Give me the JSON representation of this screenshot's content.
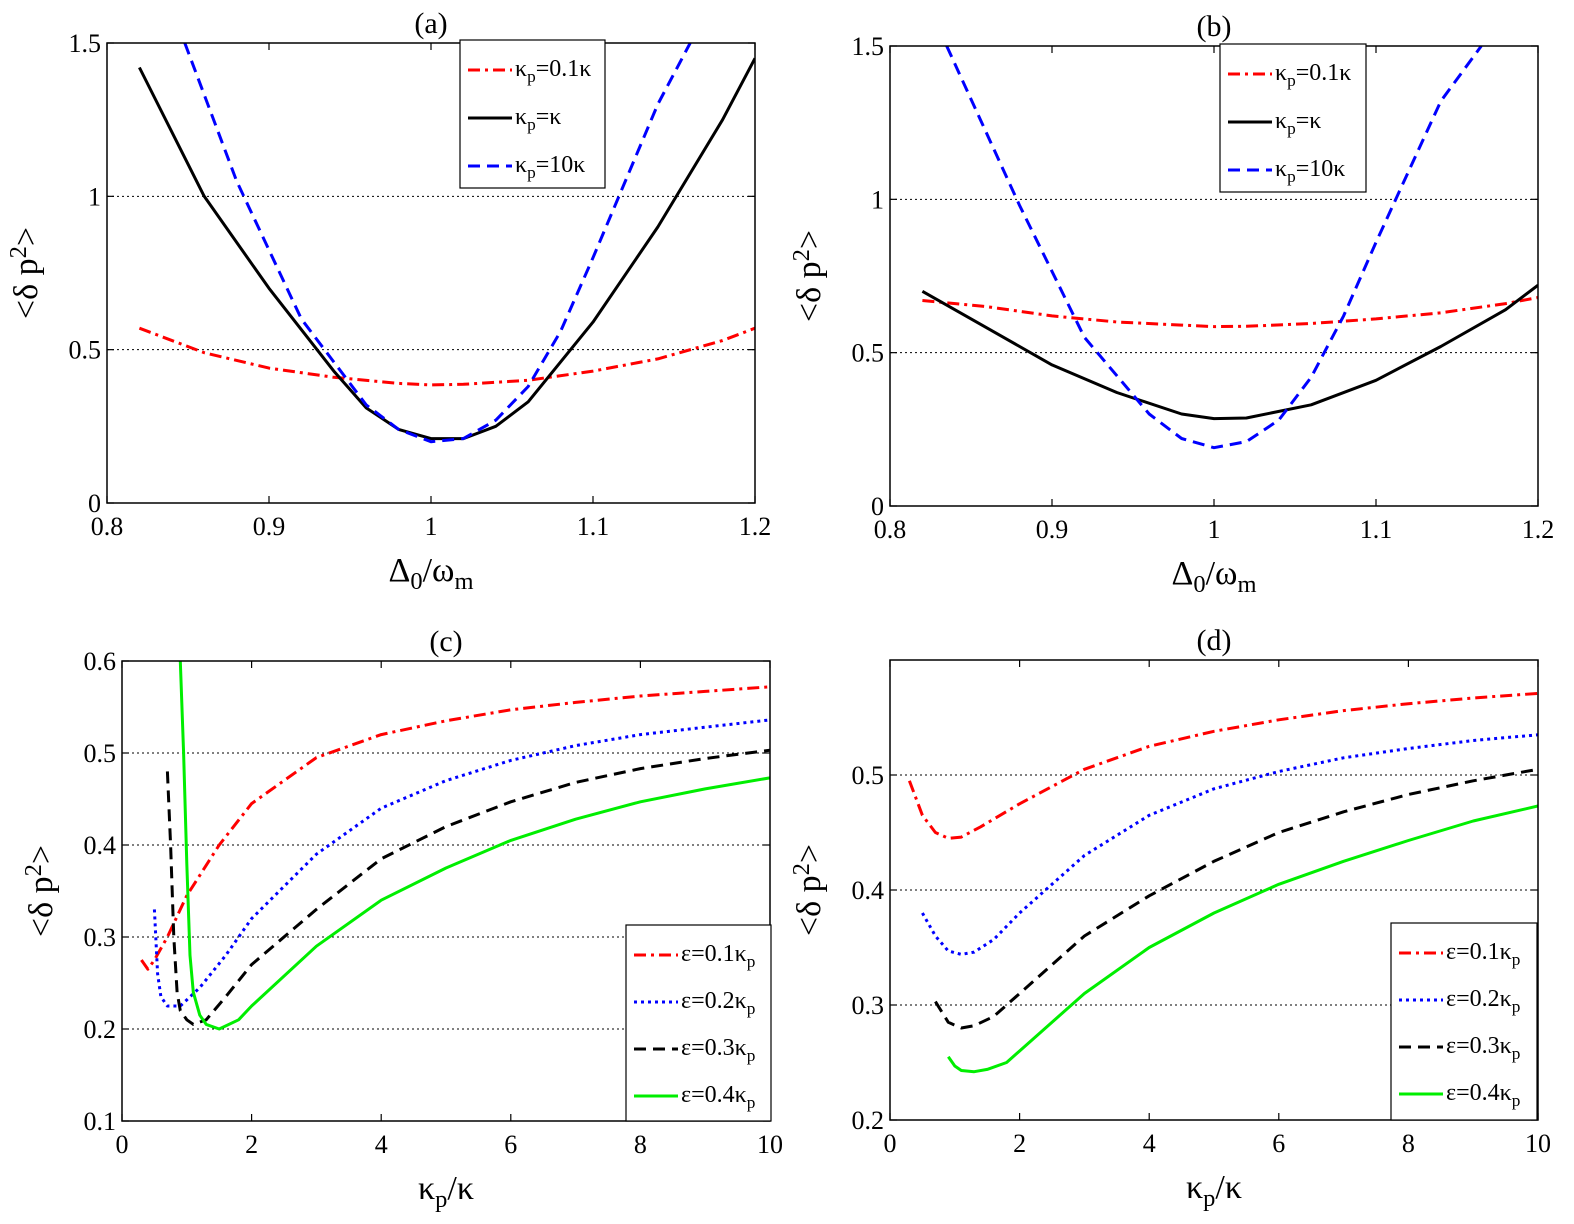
{
  "chart_data": [
    {
      "type": "line",
      "panel": "(a)",
      "title": "(a)",
      "xlabel": {
        "main": "Δ",
        "sub": "0",
        "tail": "/ω",
        "tailsub": "m"
      },
      "ylabel": {
        "main": "<δ p",
        "sup": "2",
        "tail": ">"
      },
      "xlim": [
        0.8,
        1.2
      ],
      "ylim": [
        0,
        1.5
      ],
      "xticks": [
        0.8,
        0.9,
        1.0,
        1.1,
        1.2
      ],
      "xticklabels": [
        "0.8",
        "0.9",
        "1",
        "1.1",
        "1.2"
      ],
      "yticks": [
        0,
        0.5,
        1.0,
        1.5
      ],
      "yticklabels": [
        "0",
        "0.5",
        "1",
        "1.5"
      ],
      "grid_y": [
        0.5,
        1.0
      ],
      "legend_position": "top-right",
      "series": [
        {
          "name": "κp=0.1κ",
          "label": {
            "main": "κ",
            "sub": "p",
            "tail": "=0.1κ"
          },
          "color": "#ff0000",
          "style": "dashdot",
          "x": [
            0.82,
            0.86,
            0.9,
            0.94,
            0.98,
            1.0,
            1.02,
            1.06,
            1.1,
            1.14,
            1.18,
            1.2
          ],
          "y": [
            0.57,
            0.49,
            0.44,
            0.41,
            0.39,
            0.385,
            0.387,
            0.4,
            0.43,
            0.47,
            0.53,
            0.57
          ]
        },
        {
          "name": "κp=κ",
          "label": {
            "main": "κ",
            "sub": "p",
            "tail": "=κ"
          },
          "color": "#000000",
          "style": "solid",
          "x": [
            0.82,
            0.86,
            0.9,
            0.94,
            0.96,
            0.98,
            1.0,
            1.02,
            1.04,
            1.06,
            1.1,
            1.14,
            1.18,
            1.2
          ],
          "y": [
            1.42,
            1.0,
            0.7,
            0.43,
            0.31,
            0.24,
            0.21,
            0.21,
            0.25,
            0.33,
            0.59,
            0.9,
            1.25,
            1.45
          ]
        },
        {
          "name": "κp=10κ",
          "label": {
            "main": "κ",
            "sub": "p",
            "tail": "=10κ"
          },
          "color": "#0000ff",
          "style": "dashed",
          "x": [
            0.848,
            0.88,
            0.92,
            0.96,
            0.98,
            1.0,
            1.02,
            1.04,
            1.06,
            1.08,
            1.1,
            1.14,
            1.16
          ],
          "y": [
            1.5,
            1.05,
            0.6,
            0.32,
            0.24,
            0.2,
            0.21,
            0.27,
            0.38,
            0.56,
            0.8,
            1.3,
            1.5
          ]
        }
      ]
    },
    {
      "type": "line",
      "panel": "(b)",
      "title": "(b)",
      "xlabel": {
        "main": "Δ",
        "sub": "0",
        "tail": "/ω",
        "tailsub": "m"
      },
      "ylabel": {
        "main": "<δ p",
        "sup": "2",
        "tail": ">"
      },
      "xlim": [
        0.8,
        1.2
      ],
      "ylim": [
        0,
        1.5
      ],
      "xticks": [
        0.8,
        0.9,
        1.0,
        1.1,
        1.2
      ],
      "xticklabels": [
        "0.8",
        "0.9",
        "1",
        "1.1",
        "1.2"
      ],
      "yticks": [
        0,
        0.5,
        1.0,
        1.5
      ],
      "yticklabels": [
        "0",
        "0.5",
        "1",
        "1.5"
      ],
      "grid_y": [
        0.5,
        1.0
      ],
      "legend_position": "top-right",
      "series": [
        {
          "name": "κp=0.1κ",
          "label": {
            "main": "κ",
            "sub": "p",
            "tail": "=0.1κ"
          },
          "color": "#ff0000",
          "style": "dashdot",
          "x": [
            0.82,
            0.86,
            0.9,
            0.94,
            0.98,
            1.0,
            1.02,
            1.06,
            1.1,
            1.14,
            1.18,
            1.2
          ],
          "y": [
            0.67,
            0.65,
            0.62,
            0.6,
            0.59,
            0.585,
            0.586,
            0.595,
            0.61,
            0.63,
            0.66,
            0.68
          ]
        },
        {
          "name": "κp=κ",
          "label": {
            "main": "κ",
            "sub": "p",
            "tail": "=κ"
          },
          "color": "#000000",
          "style": "solid",
          "x": [
            0.82,
            0.86,
            0.9,
            0.94,
            0.98,
            1.0,
            1.02,
            1.06,
            1.1,
            1.14,
            1.18,
            1.2
          ],
          "y": [
            0.7,
            0.58,
            0.46,
            0.37,
            0.3,
            0.285,
            0.287,
            0.33,
            0.41,
            0.52,
            0.64,
            0.72
          ]
        },
        {
          "name": "κp=10κ",
          "label": {
            "main": "κ",
            "sub": "p",
            "tail": "=10κ"
          },
          "color": "#0000ff",
          "style": "dashed",
          "x": [
            0.835,
            0.88,
            0.92,
            0.96,
            0.98,
            1.0,
            1.02,
            1.04,
            1.06,
            1.08,
            1.1,
            1.14,
            1.165
          ],
          "y": [
            1.5,
            0.98,
            0.55,
            0.3,
            0.22,
            0.19,
            0.21,
            0.28,
            0.42,
            0.62,
            0.86,
            1.32,
            1.5
          ]
        }
      ]
    },
    {
      "type": "line",
      "panel": "(c)",
      "title": "(c)",
      "xlabel": {
        "main": "κ",
        "sub": "p",
        "tail": "/κ"
      },
      "ylabel": {
        "main": "<δ p",
        "sup": "2",
        "tail": ">"
      },
      "xlim": [
        0,
        10
      ],
      "ylim": [
        0.1,
        0.6
      ],
      "xticks": [
        0,
        2,
        4,
        6,
        8,
        10
      ],
      "xticklabels": [
        "0",
        "2",
        "4",
        "6",
        "8",
        "10"
      ],
      "yticks": [
        0.1,
        0.2,
        0.3,
        0.4,
        0.5,
        0.6
      ],
      "yticklabels": [
        "0.1",
        "0.2",
        "0.3",
        "0.4",
        "0.5",
        "0.6"
      ],
      "grid_y": [
        0.2,
        0.3,
        0.4,
        0.5
      ],
      "legend_position": "bottom-right",
      "series": [
        {
          "name": "ε=0.1κp",
          "label": {
            "main": "ε=0.1κ",
            "sub": "p",
            "tail": ""
          },
          "color": "#ff0000",
          "style": "dashdot",
          "x": [
            0.3,
            0.4,
            0.5,
            0.7,
            1.0,
            1.5,
            2.0,
            3.0,
            4.0,
            5.0,
            6.0,
            7.0,
            8.0,
            9.0,
            10.0
          ],
          "y": [
            0.275,
            0.265,
            0.275,
            0.3,
            0.345,
            0.4,
            0.445,
            0.495,
            0.52,
            0.535,
            0.547,
            0.555,
            0.562,
            0.567,
            0.572
          ]
        },
        {
          "name": "ε=0.2κp",
          "label": {
            "main": "ε=0.2κ",
            "sub": "p",
            "tail": ""
          },
          "color": "#0000ff",
          "style": "dotted",
          "x": [
            0.5,
            0.55,
            0.6,
            0.7,
            0.9,
            1.2,
            1.6,
            2.0,
            3.0,
            4.0,
            5.0,
            6.0,
            7.0,
            8.0,
            9.0,
            10.0
          ],
          "y": [
            0.33,
            0.26,
            0.235,
            0.225,
            0.225,
            0.245,
            0.28,
            0.32,
            0.39,
            0.44,
            0.47,
            0.492,
            0.508,
            0.52,
            0.528,
            0.536
          ]
        },
        {
          "name": "ε=0.3κp",
          "label": {
            "main": "ε=0.3κ",
            "sub": "p",
            "tail": ""
          },
          "color": "#000000",
          "style": "dashed",
          "x": [
            0.7,
            0.75,
            0.8,
            0.85,
            0.9,
            1.0,
            1.1,
            1.3,
            1.6,
            2.0,
            3.0,
            4.0,
            5.0,
            6.0,
            7.0,
            8.0,
            9.0,
            10.0
          ],
          "y": [
            0.48,
            0.4,
            0.3,
            0.24,
            0.22,
            0.21,
            0.205,
            0.21,
            0.235,
            0.27,
            0.33,
            0.385,
            0.42,
            0.447,
            0.468,
            0.483,
            0.494,
            0.503
          ]
        },
        {
          "name": "ε=0.4κp",
          "label": {
            "main": "ε=0.4κ",
            "sub": "p",
            "tail": ""
          },
          "color": "#00ee00",
          "style": "solid",
          "x": [
            0.9,
            0.95,
            1.0,
            1.05,
            1.1,
            1.2,
            1.3,
            1.5,
            1.8,
            2.0,
            3.0,
            4.0,
            5.0,
            6.0,
            7.0,
            8.0,
            9.0,
            10.0
          ],
          "y": [
            0.6,
            0.5,
            0.38,
            0.28,
            0.24,
            0.215,
            0.205,
            0.2,
            0.21,
            0.225,
            0.29,
            0.34,
            0.375,
            0.405,
            0.428,
            0.447,
            0.461,
            0.473
          ]
        }
      ]
    },
    {
      "type": "line",
      "panel": "(d)",
      "title": "(d)",
      "xlabel": {
        "main": "κ",
        "sub": "p",
        "tail": "/κ"
      },
      "ylabel": {
        "main": "<δ p",
        "sup": "2",
        "tail": ">"
      },
      "xlim": [
        0,
        10
      ],
      "ylim": [
        0.2,
        0.6
      ],
      "xticks": [
        0,
        2,
        4,
        6,
        8,
        10
      ],
      "xticklabels": [
        "0",
        "2",
        "4",
        "6",
        "8",
        "10"
      ],
      "yticks": [
        0.2,
        0.3,
        0.4,
        0.5
      ],
      "yticklabels": [
        "0.2",
        "0.3",
        "0.4",
        "0.5"
      ],
      "grid_y": [
        0.3,
        0.4,
        0.5
      ],
      "legend_position": "bottom-right",
      "series": [
        {
          "name": "ε=0.1κp",
          "label": {
            "main": "ε=0.1κ",
            "sub": "p",
            "tail": ""
          },
          "color": "#ff0000",
          "style": "dashdot",
          "x": [
            0.3,
            0.5,
            0.7,
            0.9,
            1.1,
            1.4,
            2.0,
            3.0,
            4.0,
            5.0,
            6.0,
            7.0,
            8.0,
            9.0,
            10.0
          ],
          "y": [
            0.495,
            0.465,
            0.45,
            0.445,
            0.446,
            0.455,
            0.475,
            0.505,
            0.525,
            0.538,
            0.548,
            0.556,
            0.562,
            0.567,
            0.571
          ]
        },
        {
          "name": "ε=0.2κp",
          "label": {
            "main": "ε=0.2κ",
            "sub": "p",
            "tail": ""
          },
          "color": "#0000ff",
          "style": "dotted",
          "x": [
            0.5,
            0.7,
            0.9,
            1.1,
            1.3,
            1.6,
            2.0,
            3.0,
            4.0,
            5.0,
            6.0,
            7.0,
            8.0,
            9.0,
            10.0
          ],
          "y": [
            0.38,
            0.36,
            0.347,
            0.344,
            0.346,
            0.357,
            0.38,
            0.43,
            0.465,
            0.488,
            0.503,
            0.515,
            0.523,
            0.53,
            0.535
          ]
        },
        {
          "name": "ε=0.3κp",
          "label": {
            "main": "ε=0.3κ",
            "sub": "p",
            "tail": ""
          },
          "color": "#000000",
          "style": "dashed",
          "x": [
            0.7,
            0.9,
            1.1,
            1.3,
            1.6,
            2.0,
            3.0,
            4.0,
            5.0,
            6.0,
            7.0,
            8.0,
            9.0,
            10.0
          ],
          "y": [
            0.303,
            0.285,
            0.28,
            0.282,
            0.29,
            0.31,
            0.36,
            0.395,
            0.425,
            0.45,
            0.468,
            0.483,
            0.495,
            0.505
          ]
        },
        {
          "name": "ε=0.4κp",
          "label": {
            "main": "ε=0.4κ",
            "sub": "p",
            "tail": ""
          },
          "color": "#00ee00",
          "style": "solid",
          "x": [
            0.9,
            1.0,
            1.1,
            1.3,
            1.5,
            1.8,
            2.0,
            3.0,
            4.0,
            5.0,
            6.0,
            7.0,
            8.0,
            9.0,
            10.0
          ],
          "y": [
            0.255,
            0.247,
            0.243,
            0.242,
            0.244,
            0.25,
            0.26,
            0.31,
            0.35,
            0.38,
            0.405,
            0.425,
            0.443,
            0.46,
            0.473
          ]
        }
      ]
    }
  ]
}
